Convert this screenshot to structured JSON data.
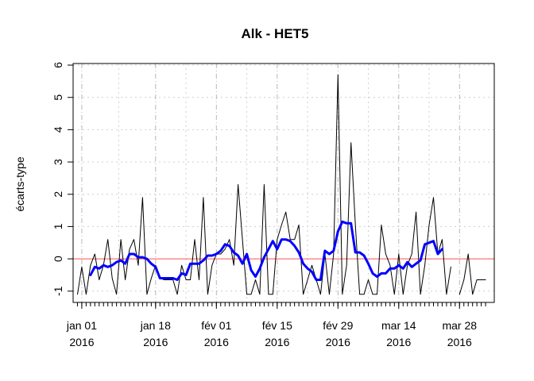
{
  "chart_data": {
    "type": "line",
    "title": "Alk - HET5",
    "xlabel": "",
    "ylabel": "écarts-type",
    "ylim": [
      -1.35,
      6.05
    ],
    "yticks": [
      -1,
      0,
      1,
      2,
      3,
      4,
      5,
      6
    ],
    "grid": true,
    "x_start_date": "2015-12-30",
    "x_end_date": "2016-04-05",
    "xtick_labels": [
      {
        "date": "2016-01-01",
        "line1": "jan 01",
        "line2": "2016"
      },
      {
        "date": "2016-01-18",
        "line1": "jan 18",
        "line2": "2016"
      },
      {
        "date": "2016-02-01",
        "line1": "fév 01",
        "line2": "2016"
      },
      {
        "date": "2016-02-15",
        "line1": "fév 15",
        "line2": "2016"
      },
      {
        "date": "2016-02-29",
        "line1": "fév 29",
        "line2": "2016"
      },
      {
        "date": "2016-03-14",
        "line1": "mar 14",
        "line2": "2016"
      },
      {
        "date": "2016-03-28",
        "line1": "mar 28",
        "line2": "2016"
      }
    ],
    "reference_line": {
      "y": 0,
      "color": "#ff5555"
    },
    "series": [
      {
        "name": "",
        "color": "#000000",
        "width": 1,
        "points": [
          {
            "x": "2015-12-31",
            "y": -1.1
          },
          {
            "x": "2016-01-01",
            "y": -0.25
          },
          {
            "x": "2016-01-02",
            "y": -1.1
          },
          {
            "x": "2016-01-03",
            "y": -0.2
          },
          {
            "x": "2016-01-04",
            "y": 0.15
          },
          {
            "x": "2016-01-05",
            "y": -0.65
          },
          {
            "x": "2016-01-06",
            "y": -0.2
          },
          {
            "x": "2016-01-07",
            "y": 0.6
          },
          {
            "x": "2016-01-08",
            "y": -0.6
          },
          {
            "x": "2016-01-09",
            "y": -1.1
          },
          {
            "x": "2016-01-10",
            "y": 0.6
          },
          {
            "x": "2016-01-11",
            "y": -0.65
          },
          {
            "x": "2016-01-12",
            "y": 0.3
          },
          {
            "x": "2016-01-13",
            "y": 0.6
          },
          {
            "x": "2016-01-14",
            "y": -0.2
          },
          {
            "x": "2016-01-15",
            "y": 1.9
          },
          {
            "x": "2016-01-16",
            "y": -1.1
          },
          {
            "x": "2016-01-17",
            "y": -0.6
          },
          {
            "x": "2016-01-18",
            "y": -0.2
          },
          {
            "x": "2016-01-19",
            "y": -0.6
          },
          {
            "x": "2016-01-20",
            "y": -0.65
          },
          {
            "x": "2016-01-21",
            "y": -0.65
          },
          {
            "x": "2016-01-22",
            "y": -0.65
          },
          {
            "x": "2016-01-23",
            "y": -1.1
          },
          {
            "x": "2016-01-24",
            "y": -0.2
          },
          {
            "x": "2016-01-25",
            "y": -0.65
          },
          {
            "x": "2016-01-26",
            "y": -0.65
          },
          {
            "x": "2016-01-27",
            "y": 0.6
          },
          {
            "x": "2016-01-28",
            "y": -0.65
          },
          {
            "x": "2016-01-29",
            "y": 1.9
          },
          {
            "x": "2016-01-30",
            "y": -1.1
          },
          {
            "x": "2016-01-31",
            "y": -0.2
          },
          {
            "x": "2016-02-01",
            "y": 0.15
          },
          {
            "x": "2016-02-02",
            "y": 0.15
          },
          {
            "x": "2016-02-03",
            "y": 0.3
          },
          {
            "x": "2016-02-04",
            "y": 0.6
          },
          {
            "x": "2016-02-05",
            "y": -0.2
          },
          {
            "x": "2016-02-06",
            "y": 2.3
          },
          {
            "x": "2016-02-07",
            "y": 0.6
          },
          {
            "x": "2016-02-08",
            "y": -1.1
          },
          {
            "x": "2016-02-09",
            "y": -1.1
          },
          {
            "x": "2016-02-10",
            "y": -0.65
          },
          {
            "x": "2016-02-11",
            "y": -1.1
          },
          {
            "x": "2016-02-12",
            "y": 2.3
          },
          {
            "x": "2016-02-13",
            "y": -1.1
          },
          {
            "x": "2016-02-14",
            "y": -1.1
          },
          {
            "x": "2016-02-15",
            "y": 0.6
          },
          {
            "x": "2016-02-16",
            "y": 1.05
          },
          {
            "x": "2016-02-17",
            "y": 1.45
          },
          {
            "x": "2016-02-18",
            "y": 0.6
          },
          {
            "x": "2016-02-19",
            "y": 0.6
          },
          {
            "x": "2016-02-20",
            "y": 1.05
          },
          {
            "x": "2016-02-21",
            "y": -1.1
          },
          {
            "x": "2016-02-22",
            "y": -0.65
          },
          {
            "x": "2016-02-23",
            "y": -0.2
          },
          {
            "x": "2016-02-24",
            "y": -0.65
          },
          {
            "x": "2016-02-25",
            "y": -1.1
          },
          {
            "x": "2016-02-26",
            "y": 0.15
          },
          {
            "x": "2016-02-27",
            "y": -1.1
          },
          {
            "x": "2016-02-28",
            "y": 0.15
          },
          {
            "x": "2016-02-29",
            "y": 5.7
          },
          {
            "x": "2016-03-01",
            "y": -1.1
          },
          {
            "x": "2016-03-02",
            "y": -0.2
          },
          {
            "x": "2016-03-03",
            "y": 3.6
          },
          {
            "x": "2016-03-04",
            "y": 1.05
          },
          {
            "x": "2016-03-05",
            "y": -1.1
          },
          {
            "x": "2016-03-06",
            "y": -1.1
          },
          {
            "x": "2016-03-07",
            "y": -0.65
          },
          {
            "x": "2016-03-08",
            "y": -1.1
          },
          {
            "x": "2016-03-09",
            "y": -1.1
          },
          {
            "x": "2016-03-10",
            "y": 1.05
          },
          {
            "x": "2016-03-11",
            "y": 0.15
          },
          {
            "x": "2016-03-12",
            "y": -0.2
          },
          {
            "x": "2016-03-13",
            "y": -1.1
          },
          {
            "x": "2016-03-14",
            "y": 0.15
          },
          {
            "x": "2016-03-15",
            "y": -1.1
          },
          {
            "x": "2016-03-16",
            "y": -0.2
          },
          {
            "x": "2016-03-17",
            "y": 0.15
          },
          {
            "x": "2016-03-18",
            "y": 1.45
          },
          {
            "x": "2016-03-19",
            "y": -1.1
          },
          {
            "x": "2016-03-20",
            "y": -0.2
          },
          {
            "x": "2016-03-21",
            "y": 1.05
          },
          {
            "x": "2016-03-22",
            "y": 1.9
          },
          {
            "x": "2016-03-23",
            "y": 0.15
          },
          {
            "x": "2016-03-24",
            "y": 0.6
          },
          {
            "x": "2016-03-25",
            "y": -1.1
          },
          {
            "x": "2016-03-26",
            "y": -0.25
          },
          {
            "x": "2016-03-27",
            "y": null
          },
          {
            "x": "2016-03-28",
            "y": -1.1
          },
          {
            "x": "2016-03-29",
            "y": -0.65
          },
          {
            "x": "2016-03-30",
            "y": 0.15
          },
          {
            "x": "2016-03-31",
            "y": -1.1
          },
          {
            "x": "2016-04-01",
            "y": -0.65
          },
          {
            "x": "2016-04-02",
            "y": -0.65
          },
          {
            "x": "2016-04-03",
            "y": -0.65
          }
        ]
      },
      {
        "name": "",
        "color": "#0000ff",
        "width": 3,
        "points": [
          {
            "x": "2016-01-03",
            "y": -0.5
          },
          {
            "x": "2016-01-04",
            "y": -0.25
          },
          {
            "x": "2016-01-05",
            "y": -0.3
          },
          {
            "x": "2016-01-06",
            "y": -0.2
          },
          {
            "x": "2016-01-07",
            "y": -0.25
          },
          {
            "x": "2016-01-08",
            "y": -0.2
          },
          {
            "x": "2016-01-09",
            "y": -0.1
          },
          {
            "x": "2016-01-10",
            "y": -0.05
          },
          {
            "x": "2016-01-11",
            "y": -0.15
          },
          {
            "x": "2016-01-12",
            "y": 0.15
          },
          {
            "x": "2016-01-13",
            "y": 0.15
          },
          {
            "x": "2016-01-14",
            "y": 0.05
          },
          {
            "x": "2016-01-15",
            "y": 0.05
          },
          {
            "x": "2016-01-16",
            "y": 0.0
          },
          {
            "x": "2016-01-17",
            "y": -0.15
          },
          {
            "x": "2016-01-18",
            "y": -0.25
          },
          {
            "x": "2016-01-19",
            "y": -0.6
          },
          {
            "x": "2016-01-20",
            "y": -0.6
          },
          {
            "x": "2016-01-21",
            "y": -0.6
          },
          {
            "x": "2016-01-22",
            "y": -0.6
          },
          {
            "x": "2016-01-23",
            "y": -0.65
          },
          {
            "x": "2016-01-24",
            "y": -0.45
          },
          {
            "x": "2016-01-25",
            "y": -0.5
          },
          {
            "x": "2016-01-26",
            "y": -0.15
          },
          {
            "x": "2016-01-27",
            "y": -0.15
          },
          {
            "x": "2016-01-28",
            "y": -0.15
          },
          {
            "x": "2016-01-29",
            "y": -0.05
          },
          {
            "x": "2016-01-30",
            "y": 0.1
          },
          {
            "x": "2016-01-31",
            "y": 0.1
          },
          {
            "x": "2016-02-01",
            "y": 0.15
          },
          {
            "x": "2016-02-02",
            "y": 0.25
          },
          {
            "x": "2016-02-03",
            "y": 0.45
          },
          {
            "x": "2016-02-04",
            "y": 0.4
          },
          {
            "x": "2016-02-05",
            "y": 0.2
          },
          {
            "x": "2016-02-06",
            "y": 0.1
          },
          {
            "x": "2016-02-07",
            "y": -0.15
          },
          {
            "x": "2016-02-08",
            "y": 0.15
          },
          {
            "x": "2016-02-09",
            "y": -0.35
          },
          {
            "x": "2016-02-10",
            "y": -0.55
          },
          {
            "x": "2016-02-11",
            "y": -0.3
          },
          {
            "x": "2016-02-12",
            "y": 0.05
          },
          {
            "x": "2016-02-13",
            "y": 0.3
          },
          {
            "x": "2016-02-14",
            "y": 0.55
          },
          {
            "x": "2016-02-15",
            "y": 0.3
          },
          {
            "x": "2016-02-16",
            "y": 0.6
          },
          {
            "x": "2016-02-17",
            "y": 0.6
          },
          {
            "x": "2016-02-18",
            "y": 0.55
          },
          {
            "x": "2016-02-19",
            "y": 0.4
          },
          {
            "x": "2016-02-20",
            "y": 0.2
          },
          {
            "x": "2016-02-21",
            "y": -0.15
          },
          {
            "x": "2016-02-22",
            "y": -0.3
          },
          {
            "x": "2016-02-23",
            "y": -0.4
          },
          {
            "x": "2016-02-24",
            "y": -0.65
          },
          {
            "x": "2016-02-25",
            "y": -0.65
          },
          {
            "x": "2016-02-26",
            "y": 0.25
          },
          {
            "x": "2016-02-27",
            "y": 0.15
          },
          {
            "x": "2016-02-28",
            "y": 0.25
          },
          {
            "x": "2016-02-29",
            "y": 0.85
          },
          {
            "x": "2016-03-01",
            "y": 1.15
          },
          {
            "x": "2016-03-02",
            "y": 1.1
          },
          {
            "x": "2016-03-03",
            "y": 1.1
          },
          {
            "x": "2016-03-04",
            "y": 0.2
          },
          {
            "x": "2016-03-05",
            "y": 0.2
          },
          {
            "x": "2016-03-06",
            "y": 0.1
          },
          {
            "x": "2016-03-07",
            "y": -0.15
          },
          {
            "x": "2016-03-08",
            "y": -0.45
          },
          {
            "x": "2016-03-09",
            "y": -0.55
          },
          {
            "x": "2016-03-10",
            "y": -0.45
          },
          {
            "x": "2016-03-11",
            "y": -0.45
          },
          {
            "x": "2016-03-12",
            "y": -0.3
          },
          {
            "x": "2016-03-13",
            "y": -0.3
          },
          {
            "x": "2016-03-14",
            "y": -0.2
          },
          {
            "x": "2016-03-15",
            "y": -0.3
          },
          {
            "x": "2016-03-16",
            "y": -0.1
          },
          {
            "x": "2016-03-17",
            "y": -0.25
          },
          {
            "x": "2016-03-18",
            "y": -0.15
          },
          {
            "x": "2016-03-19",
            "y": -0.05
          },
          {
            "x": "2016-03-20",
            "y": 0.45
          },
          {
            "x": "2016-03-21",
            "y": 0.5
          },
          {
            "x": "2016-03-22",
            "y": 0.55
          },
          {
            "x": "2016-03-23",
            "y": 0.15
          },
          {
            "x": "2016-03-24",
            "y": 0.3
          }
        ]
      }
    ]
  }
}
